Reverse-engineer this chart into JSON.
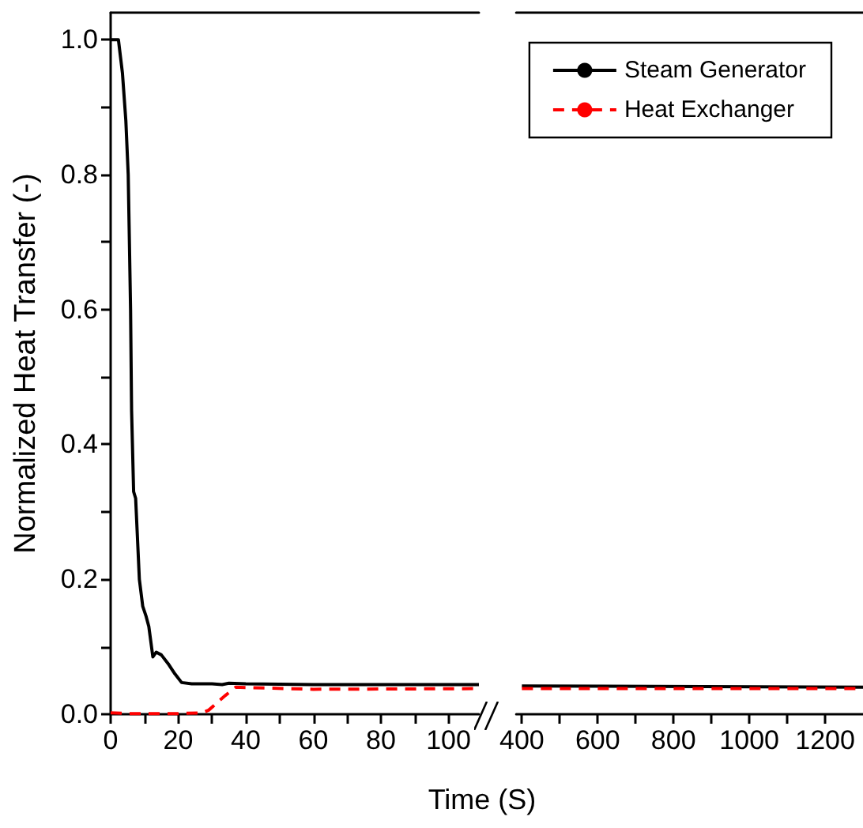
{
  "chart_data": [
    {
      "type": "line",
      "xlabel": "Time (S)",
      "ylabel": "Normalized Heat Transfer (-)",
      "xlim": [
        0,
        109
      ],
      "ylim": [
        0,
        1.04
      ],
      "xticks": [
        0,
        {
          "value": 10,
          "label": null
        },
        20,
        {
          "value": 30,
          "label": null
        },
        40,
        {
          "value": 50,
          "label": null
        },
        60,
        {
          "value": 70,
          "label": null
        },
        80,
        {
          "value": 90,
          "label": null
        },
        100
      ],
      "yticks": [
        {
          "value": 0,
          "label": "0.0"
        },
        {
          "value": 0.1,
          "label": null
        },
        0.2,
        {
          "value": 0.3,
          "label": null
        },
        0.4,
        {
          "value": 0.5,
          "label": null
        },
        0.6,
        {
          "value": 0.7,
          "label": null
        },
        0.8,
        {
          "value": 0.9,
          "label": null
        },
        {
          "value": 1,
          "label": "1.0"
        }
      ],
      "grid": false,
      "legend": false,
      "marker": "none",
      "series": [
        {
          "color": "#000000",
          "line_style": "solid",
          "x": [
            0,
            2.3,
            3.5,
            4.5,
            5.2,
            5.9,
            6.2,
            6.8,
            7.4,
            8.5,
            9.5,
            10.5,
            11.3,
            12.5,
            13.5,
            15,
            17,
            19,
            21,
            24,
            30,
            33,
            35,
            40,
            60,
            100,
            109
          ],
          "values": [
            1.0,
            1.0,
            0.95,
            0.88,
            0.8,
            0.6,
            0.45,
            0.33,
            0.32,
            0.2,
            0.16,
            0.145,
            0.13,
            0.085,
            0.092,
            0.088,
            0.075,
            0.06,
            0.047,
            0.045,
            0.045,
            0.044,
            0.046,
            0.045,
            0.044,
            0.044,
            0.044
          ]
        },
        {
          "color": "#ff0000",
          "line_style": "dashed",
          "x": [
            0,
            5,
            20,
            27,
            29,
            34,
            37,
            60,
            109
          ],
          "values": [
            0.002,
            0.001,
            0.001,
            0.002,
            0.006,
            0.028,
            0.04,
            0.037,
            0.038
          ]
        }
      ]
    },
    {
      "type": "line",
      "xlim": [
        385,
        1300
      ],
      "ylim": [
        0,
        1.04
      ],
      "tick_labels": "x",
      "xticks": [
        400,
        {
          "value": 500,
          "label": null
        },
        600,
        {
          "value": 700,
          "label": null
        },
        800,
        {
          "value": 900,
          "label": null
        },
        1000,
        {
          "value": 1100,
          "label": null
        },
        1200
      ],
      "grid": false,
      "legend": "top right",
      "marker": "none",
      "series": [
        {
          "name": "Steam Generator",
          "color": "#000000",
          "line_style": "solid",
          "x": [
            400,
            1300
          ],
          "values": [
            0.042,
            0.04
          ]
        },
        {
          "name": "Heat Exchanger",
          "color": "#ff0000",
          "line_style": "dashed",
          "x": [
            400,
            1300
          ],
          "values": [
            0.038,
            0.038
          ]
        }
      ]
    }
  ]
}
